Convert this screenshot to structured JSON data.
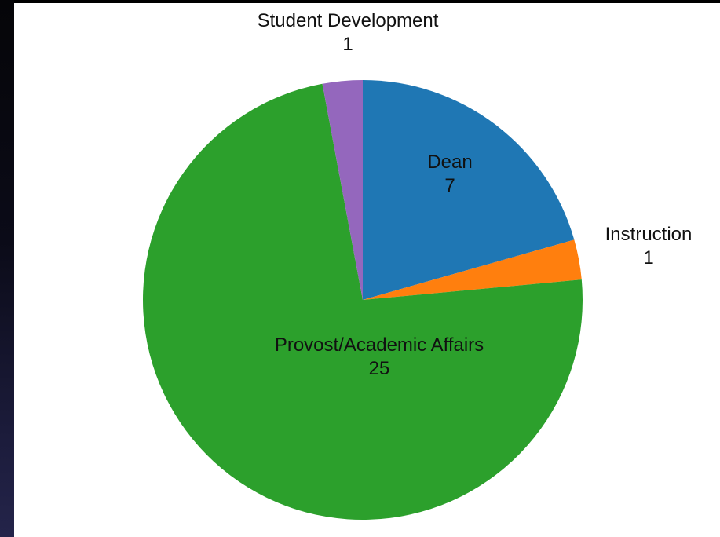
{
  "chart_data": {
    "type": "pie",
    "title": "",
    "slices": [
      {
        "label": "Dean",
        "value": 7,
        "color": "#1f77b4"
      },
      {
        "label": "Instruction",
        "value": 1,
        "color": "#ff7f0e"
      },
      {
        "label": "Provost/Academic Affairs",
        "value": 25,
        "color": "#2ca02c"
      },
      {
        "label": "Student Development",
        "value": 1,
        "color": "#9467bd"
      }
    ],
    "start_angle": "12 o'clock",
    "direction": "clockwise"
  }
}
